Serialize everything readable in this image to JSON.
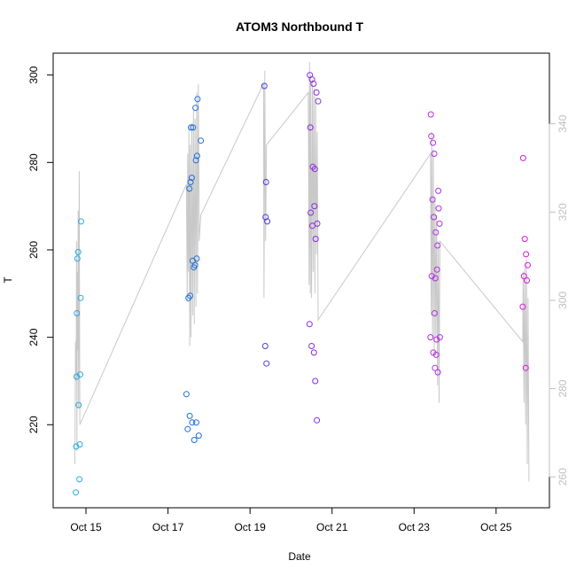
{
  "chart_data": {
    "type": "scatter",
    "title": "ATOM3 Northbound T",
    "xlabel": "Date",
    "ylabel": "T",
    "x_range_days": [
      14.7,
      25.9
    ],
    "xlim": [
      14.2,
      26.3
    ],
    "ylim": [
      201,
      305
    ],
    "y2lim": [
      253,
      356
    ],
    "x_ticks": [
      15,
      17,
      19,
      21,
      23,
      25
    ],
    "x_tick_labels": [
      "Oct 15",
      "Oct 17",
      "Oct 19",
      "Oct 21",
      "Oct 23",
      "Oct 25"
    ],
    "y_ticks": [
      220,
      240,
      260,
      280,
      300
    ],
    "y2_ticks": [
      260,
      280,
      300,
      320,
      340
    ],
    "colors": {
      "line": "#c8c8c8",
      "right_axis": "#bfbfbf"
    },
    "points": [
      {
        "x": 14.75,
        "y": 204.5,
        "c": "#29abe2"
      },
      {
        "x": 14.76,
        "y": 215,
        "c": "#29abe2"
      },
      {
        "x": 14.77,
        "y": 231,
        "c": "#29abe2"
      },
      {
        "x": 14.78,
        "y": 245.5,
        "c": "#29abe2"
      },
      {
        "x": 14.79,
        "y": 258,
        "c": "#29abe2"
      },
      {
        "x": 14.81,
        "y": 259.5,
        "c": "#29abe2"
      },
      {
        "x": 14.82,
        "y": 224.5,
        "c": "#29abe2"
      },
      {
        "x": 14.84,
        "y": 207.5,
        "c": "#29abe2"
      },
      {
        "x": 14.85,
        "y": 215.5,
        "c": "#29abe2"
      },
      {
        "x": 14.86,
        "y": 231.5,
        "c": "#29abe2"
      },
      {
        "x": 14.87,
        "y": 249,
        "c": "#29abe2"
      },
      {
        "x": 14.88,
        "y": 266.5,
        "c": "#29abe2"
      },
      {
        "x": 17.45,
        "y": 227,
        "c": "#1f6fd6"
      },
      {
        "x": 17.48,
        "y": 219,
        "c": "#1f6fd6"
      },
      {
        "x": 17.5,
        "y": 249,
        "c": "#1f6fd6"
      },
      {
        "x": 17.52,
        "y": 274,
        "c": "#1f6fd6"
      },
      {
        "x": 17.53,
        "y": 222,
        "c": "#1f6fd6"
      },
      {
        "x": 17.54,
        "y": 249.5,
        "c": "#1f6fd6"
      },
      {
        "x": 17.55,
        "y": 275.5,
        "c": "#1f6fd6"
      },
      {
        "x": 17.56,
        "y": 288,
        "c": "#1f6fd6"
      },
      {
        "x": 17.58,
        "y": 276.5,
        "c": "#1f6fd6"
      },
      {
        "x": 17.59,
        "y": 220.5,
        "c": "#1f6fd6"
      },
      {
        "x": 17.6,
        "y": 257.5,
        "c": "#1f6fd6"
      },
      {
        "x": 17.61,
        "y": 288,
        "c": "#1f6fd6"
      },
      {
        "x": 17.63,
        "y": 256,
        "c": "#1f6fd6"
      },
      {
        "x": 17.64,
        "y": 216.5,
        "c": "#1f6fd6"
      },
      {
        "x": 17.66,
        "y": 256.5,
        "c": "#1f6fd6"
      },
      {
        "x": 17.67,
        "y": 292.5,
        "c": "#1f6fd6"
      },
      {
        "x": 17.68,
        "y": 280.5,
        "c": "#1f6fd6"
      },
      {
        "x": 17.69,
        "y": 220.5,
        "c": "#1f6fd6"
      },
      {
        "x": 17.7,
        "y": 258,
        "c": "#1f6fd6"
      },
      {
        "x": 17.71,
        "y": 281.5,
        "c": "#1f6fd6"
      },
      {
        "x": 17.72,
        "y": 294.5,
        "c": "#1f6fd6"
      },
      {
        "x": 17.75,
        "y": 217.5,
        "c": "#1f6fd6"
      },
      {
        "x": 17.8,
        "y": 285,
        "c": "#1f6fd6"
      },
      {
        "x": 19.35,
        "y": 297.5,
        "c": "#4b3fe0"
      },
      {
        "x": 19.37,
        "y": 238,
        "c": "#4b3fe0"
      },
      {
        "x": 19.38,
        "y": 267.5,
        "c": "#4b3fe0"
      },
      {
        "x": 19.39,
        "y": 275.5,
        "c": "#4b3fe0"
      },
      {
        "x": 19.4,
        "y": 234,
        "c": "#4b3fe0"
      },
      {
        "x": 19.42,
        "y": 266.5,
        "c": "#4b3fe0"
      },
      {
        "x": 20.45,
        "y": 243,
        "c": "#8a2be2"
      },
      {
        "x": 20.46,
        "y": 300,
        "c": "#8a2be2"
      },
      {
        "x": 20.47,
        "y": 288,
        "c": "#8a2be2"
      },
      {
        "x": 20.48,
        "y": 268.5,
        "c": "#8a2be2"
      },
      {
        "x": 20.5,
        "y": 238,
        "c": "#8a2be2"
      },
      {
        "x": 20.51,
        "y": 299,
        "c": "#8a2be2"
      },
      {
        "x": 20.52,
        "y": 265.5,
        "c": "#8a2be2"
      },
      {
        "x": 20.53,
        "y": 279,
        "c": "#8a2be2"
      },
      {
        "x": 20.55,
        "y": 298,
        "c": "#8a2be2"
      },
      {
        "x": 20.56,
        "y": 236.5,
        "c": "#8a2be2"
      },
      {
        "x": 20.57,
        "y": 270,
        "c": "#8a2be2"
      },
      {
        "x": 20.58,
        "y": 278.5,
        "c": "#8a2be2"
      },
      {
        "x": 20.59,
        "y": 230,
        "c": "#8a2be2"
      },
      {
        "x": 20.6,
        "y": 262.5,
        "c": "#8a2be2"
      },
      {
        "x": 20.62,
        "y": 296,
        "c": "#8a2be2"
      },
      {
        "x": 20.63,
        "y": 221,
        "c": "#8a2be2"
      },
      {
        "x": 20.64,
        "y": 266,
        "c": "#8a2be2"
      },
      {
        "x": 20.66,
        "y": 294,
        "c": "#8a2be2"
      },
      {
        "x": 23.4,
        "y": 240,
        "c": "#b32fe0"
      },
      {
        "x": 23.41,
        "y": 291,
        "c": "#b32fe0"
      },
      {
        "x": 23.42,
        "y": 286,
        "c": "#b32fe0"
      },
      {
        "x": 23.43,
        "y": 254,
        "c": "#b32fe0"
      },
      {
        "x": 23.45,
        "y": 271.5,
        "c": "#b32fe0"
      },
      {
        "x": 23.46,
        "y": 284.5,
        "c": "#b32fe0"
      },
      {
        "x": 23.47,
        "y": 236.5,
        "c": "#b32fe0"
      },
      {
        "x": 23.48,
        "y": 267.5,
        "c": "#b32fe0"
      },
      {
        "x": 23.49,
        "y": 282,
        "c": "#b32fe0"
      },
      {
        "x": 23.5,
        "y": 245.5,
        "c": "#b32fe0"
      },
      {
        "x": 23.51,
        "y": 233,
        "c": "#b32fe0"
      },
      {
        "x": 23.52,
        "y": 253.5,
        "c": "#b32fe0"
      },
      {
        "x": 23.53,
        "y": 264,
        "c": "#b32fe0"
      },
      {
        "x": 23.54,
        "y": 236,
        "c": "#b32fe0"
      },
      {
        "x": 23.55,
        "y": 239.5,
        "c": "#b32fe0"
      },
      {
        "x": 23.56,
        "y": 255.5,
        "c": "#b32fe0"
      },
      {
        "x": 23.57,
        "y": 261,
        "c": "#b32fe0"
      },
      {
        "x": 23.58,
        "y": 232,
        "c": "#b32fe0"
      },
      {
        "x": 23.59,
        "y": 273.5,
        "c": "#b32fe0"
      },
      {
        "x": 23.6,
        "y": 269.5,
        "c": "#b32fe0"
      },
      {
        "x": 23.62,
        "y": 266,
        "c": "#b32fe0"
      },
      {
        "x": 23.63,
        "y": 240,
        "c": "#b32fe0"
      },
      {
        "x": 25.65,
        "y": 247,
        "c": "#d81bd8"
      },
      {
        "x": 25.66,
        "y": 281,
        "c": "#d81bd8"
      },
      {
        "x": 25.68,
        "y": 254,
        "c": "#d81bd8"
      },
      {
        "x": 25.7,
        "y": 262.5,
        "c": "#d81bd8"
      },
      {
        "x": 25.72,
        "y": 233,
        "c": "#d81bd8"
      },
      {
        "x": 25.73,
        "y": 259,
        "c": "#d81bd8"
      },
      {
        "x": 25.75,
        "y": 253,
        "c": "#d81bd8"
      },
      {
        "x": 25.77,
        "y": 256.5,
        "c": "#d81bd8"
      }
    ],
    "line": [
      [
        14.73,
        211
      ],
      [
        14.745,
        239
      ],
      [
        14.76,
        230
      ],
      [
        14.77,
        262
      ],
      [
        14.78,
        214
      ],
      [
        14.79,
        255
      ],
      [
        14.8,
        237
      ],
      [
        14.81,
        269
      ],
      [
        14.82,
        224
      ],
      [
        14.835,
        278
      ],
      [
        14.85,
        220
      ],
      [
        17.45,
        275
      ],
      [
        17.47,
        248
      ],
      [
        17.48,
        282
      ],
      [
        17.5,
        255
      ],
      [
        17.51,
        288
      ],
      [
        17.53,
        238
      ],
      [
        17.54,
        284
      ],
      [
        17.56,
        240
      ],
      [
        17.58,
        289
      ],
      [
        17.6,
        245
      ],
      [
        17.62,
        292
      ],
      [
        17.64,
        243
      ],
      [
        17.66,
        290
      ],
      [
        17.68,
        247
      ],
      [
        17.7,
        296
      ],
      [
        17.72,
        250
      ],
      [
        17.74,
        298
      ],
      [
        17.76,
        262
      ],
      [
        17.8,
        268
      ],
      [
        19.33,
        298
      ],
      [
        19.34,
        249
      ],
      [
        19.36,
        301
      ],
      [
        19.38,
        262
      ],
      [
        19.4,
        284
      ],
      [
        20.42,
        296
      ],
      [
        20.44,
        252
      ],
      [
        20.45,
        303
      ],
      [
        20.47,
        250
      ],
      [
        20.48,
        300
      ],
      [
        20.5,
        249
      ],
      [
        20.52,
        299
      ],
      [
        20.54,
        255
      ],
      [
        20.56,
        297
      ],
      [
        20.58,
        250
      ],
      [
        20.6,
        295
      ],
      [
        20.62,
        259
      ],
      [
        20.64,
        287
      ],
      [
        20.66,
        244
      ],
      [
        23.4,
        282
      ],
      [
        23.42,
        245
      ],
      [
        23.43,
        287
      ],
      [
        23.45,
        240
      ],
      [
        23.47,
        283
      ],
      [
        23.49,
        236
      ],
      [
        23.51,
        272
      ],
      [
        23.53,
        240
      ],
      [
        23.55,
        268
      ],
      [
        23.57,
        229
      ],
      [
        23.59,
        262
      ],
      [
        23.61,
        225
      ],
      [
        23.63,
        262
      ],
      [
        25.65,
        239
      ],
      [
        25.66,
        255
      ],
      [
        25.68,
        225
      ],
      [
        25.7,
        256
      ],
      [
        25.72,
        220
      ],
      [
        25.74,
        258
      ],
      [
        25.76,
        211
      ],
      [
        25.78,
        249
      ],
      [
        25.8,
        207
      ]
    ]
  }
}
